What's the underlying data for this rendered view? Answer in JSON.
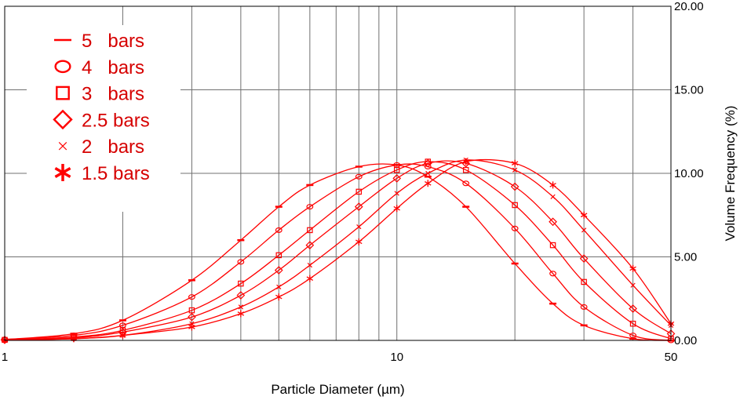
{
  "chart_data": {
    "type": "line",
    "xlabel": "Particle Diameter (µm)",
    "ylabel": "Volume Frequency (%)",
    "x_scale": "log",
    "xlim": [
      1,
      50
    ],
    "ylim": [
      0,
      20
    ],
    "x_ticks": [
      "1",
      "10",
      "50"
    ],
    "y_ticks": [
      "0.00",
      "5.00",
      "10.00",
      "15.00",
      "20.00"
    ],
    "grid": true,
    "legend_position": "top-left",
    "color": "#ff0000",
    "series": [
      {
        "name": "5   bars",
        "marker": "line",
        "x": [
          1,
          1.5,
          2,
          3,
          4,
          5,
          6,
          8,
          10,
          12,
          15,
          20,
          25,
          30,
          40,
          50
        ],
        "y": [
          0.05,
          0.4,
          1.2,
          3.6,
          6.0,
          8.0,
          9.3,
          10.4,
          10.5,
          9.8,
          8.0,
          4.6,
          2.2,
          0.9,
          0.1,
          0.0
        ]
      },
      {
        "name": "4   bars",
        "marker": "circle",
        "x": [
          1,
          1.5,
          2,
          3,
          4,
          5,
          6,
          8,
          10,
          12,
          15,
          20,
          25,
          30,
          40,
          50
        ],
        "y": [
          0.05,
          0.3,
          0.9,
          2.6,
          4.7,
          6.6,
          8.0,
          9.8,
          10.5,
          10.4,
          9.4,
          6.7,
          4.0,
          2.0,
          0.3,
          0.0
        ]
      },
      {
        "name": "3   bars",
        "marker": "square",
        "x": [
          1,
          1.5,
          2,
          3,
          4,
          5,
          6,
          8,
          10,
          12,
          15,
          20,
          25,
          30,
          40,
          50
        ],
        "y": [
          0.03,
          0.2,
          0.6,
          1.8,
          3.4,
          5.1,
          6.6,
          8.9,
          10.2,
          10.7,
          10.2,
          8.1,
          5.7,
          3.5,
          1.0,
          0.1
        ]
      },
      {
        "name": "2.5 bars",
        "marker": "diamond",
        "x": [
          1,
          1.5,
          2,
          3,
          4,
          5,
          6,
          8,
          10,
          12,
          15,
          20,
          25,
          30,
          40,
          50
        ],
        "y": [
          0.03,
          0.15,
          0.5,
          1.4,
          2.7,
          4.2,
          5.7,
          8.0,
          9.7,
          10.6,
          10.6,
          9.2,
          7.1,
          4.9,
          1.9,
          0.4
        ]
      },
      {
        "name": "2   bars",
        "marker": "x",
        "x": [
          1,
          1.5,
          2,
          3,
          4,
          5,
          6,
          8,
          10,
          12,
          15,
          20,
          25,
          30,
          40,
          50
        ],
        "y": [
          0.02,
          0.1,
          0.3,
          1.0,
          2.0,
          3.2,
          4.5,
          6.8,
          8.8,
          10.0,
          10.8,
          10.2,
          8.6,
          6.6,
          3.3,
          0.9
        ]
      },
      {
        "name": "1.5 bars",
        "marker": "star",
        "x": [
          1,
          1.5,
          2,
          3,
          4,
          5,
          6,
          8,
          10,
          12,
          15,
          20,
          25,
          30,
          40,
          50
        ],
        "y": [
          0.02,
          0.1,
          0.3,
          0.8,
          1.6,
          2.6,
          3.7,
          5.9,
          7.9,
          9.4,
          10.7,
          10.6,
          9.3,
          7.5,
          4.3,
          1.0
        ]
      }
    ]
  }
}
